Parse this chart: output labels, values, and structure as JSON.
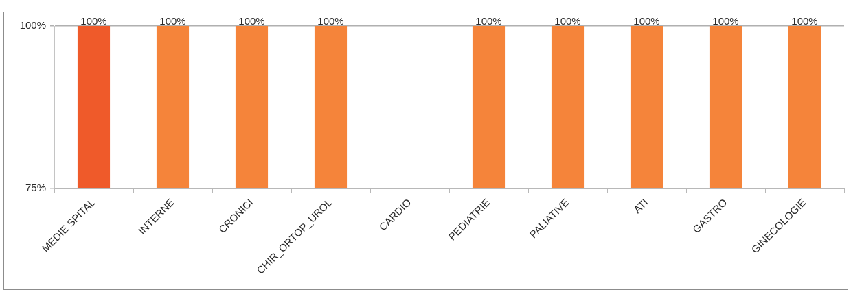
{
  "chart_data": {
    "type": "bar",
    "categories": [
      "MEDIE SPITAL",
      "INTERNE",
      "CRONICI",
      "CHIR_ORTOP_UROL",
      "CARDIO",
      "PEDIATRIE",
      "PALIATIVE",
      "ATI",
      "GASTRO",
      "GINECOLOGIE"
    ],
    "values": [
      100,
      100,
      100,
      100,
      null,
      100,
      100,
      100,
      100,
      100
    ],
    "colors": [
      "#ef5a2a",
      "#f5843a",
      "#f5843a",
      "#f5843a",
      "#f5843a",
      "#f5843a",
      "#f5843a",
      "#f5843a",
      "#f5843a",
      "#f5843a"
    ],
    "value_labels": [
      "100%",
      "100%",
      "100%",
      "100%",
      null,
      "100%",
      "100%",
      "100%",
      "100%",
      "100%"
    ],
    "ylim": [
      75,
      100
    ],
    "yticks": [
      {
        "value": 75,
        "label": "75%"
      },
      {
        "value": 100,
        "label": "100%"
      }
    ],
    "grid": "y"
  }
}
